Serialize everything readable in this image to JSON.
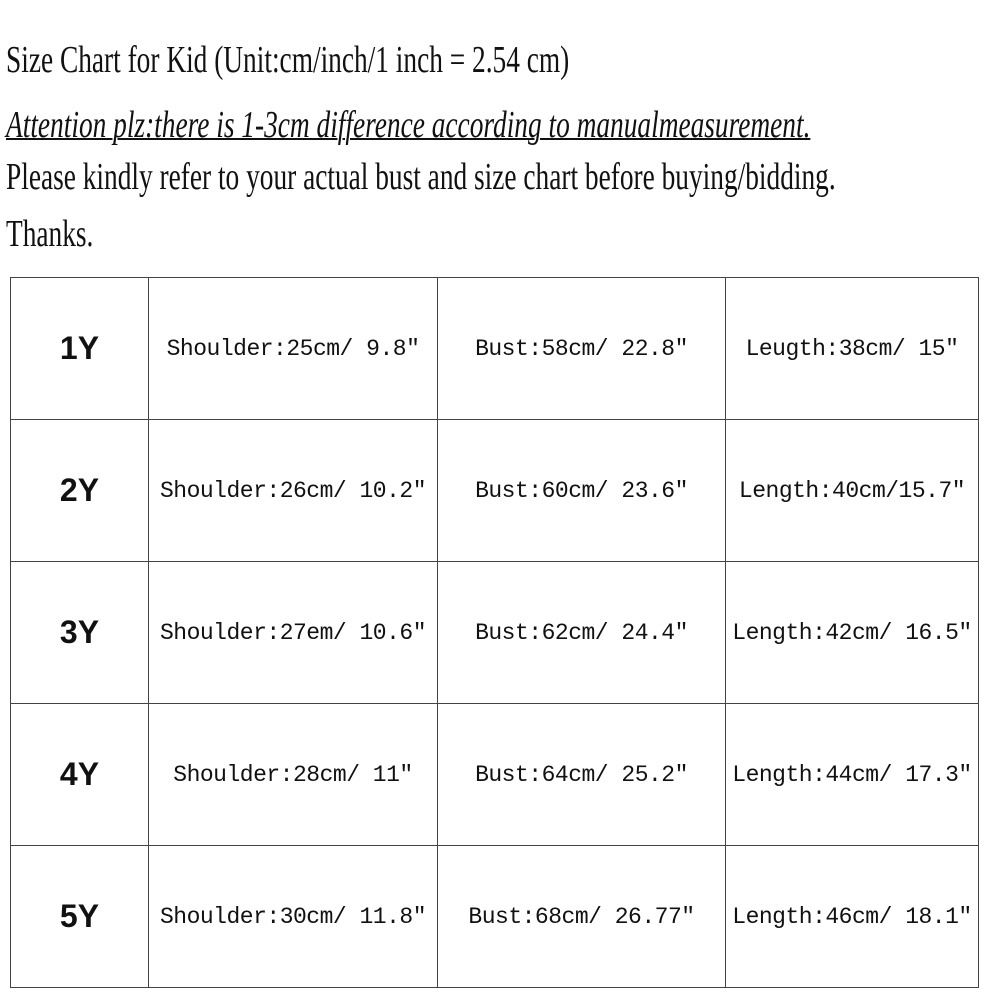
{
  "header": {
    "title": "Size Chart for Kid (Unit:cm/inch/1 inch = 2.54 cm)",
    "attention": "Attention plz:there is 1-3cm difference according to manualmeasurement.",
    "note": "Please kindly refer to your actual bust and size chart before buying/bidding.",
    "thanks": "Thanks."
  },
  "table": {
    "rows": [
      {
        "size": "1Y",
        "shoulder": "Shoulder:25cm/ 9.8\"",
        "bust": "Bust:58cm/ 22.8\"",
        "length": "Leugth:38cm/ 15\""
      },
      {
        "size": "2Y",
        "shoulder": "Shoulder:26cm/ 10.2\"",
        "bust": "Bust:60cm/ 23.6\"",
        "length": "Length:40cm/15.7\""
      },
      {
        "size": "3Y",
        "shoulder": "Shoulder:27em/ 10.6\"",
        "bust": "Bust:62cm/ 24.4\"",
        "length": "Length:42cm/ 16.5\""
      },
      {
        "size": "4Y",
        "shoulder": "Shoulder:28cm/ 11\"",
        "bust": "Bust:64cm/ 25.2\"",
        "length": "Length:44cm/ 17.3\""
      },
      {
        "size": "5Y",
        "shoulder": "Shoulder:30cm/ 11.8\"",
        "bust": "Bust:68cm/ 26.77\"",
        "length": "Length:46cm/ 18.1\""
      }
    ]
  }
}
